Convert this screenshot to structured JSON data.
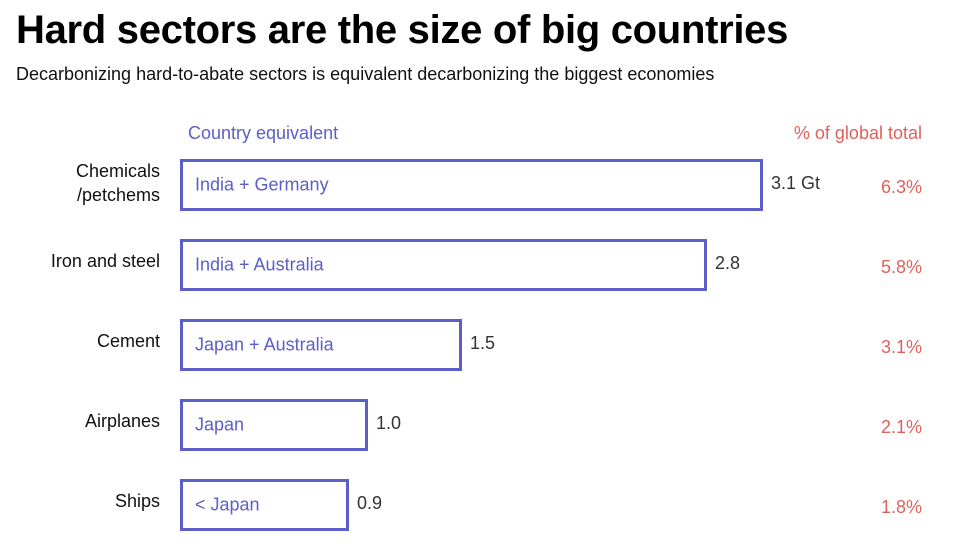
{
  "title": "Hard sectors are the size of big countries",
  "subtitle": "Decarbonizing hard-to-abate sectors is equivalent decarbonizing the biggest economies",
  "chart_data": {
    "type": "bar",
    "orientation": "horizontal",
    "title": "Hard sectors are the size of big countries",
    "subtitle": "Decarbonizing hard-to-abate sectors is equivalent decarbonizing the biggest economies",
    "country_header": "Country equivalent",
    "percent_header": "% of global total",
    "unit": "Gt",
    "xlim": [
      0,
      3.1
    ],
    "grid": false,
    "legend": "none",
    "categories": [
      [
        "Chemicals",
        "/petchems"
      ],
      [
        "Iron and steel"
      ],
      [
        "Cement"
      ],
      [
        "Airplanes"
      ],
      [
        "Ships"
      ]
    ],
    "values": [
      3.1,
      2.8,
      1.5,
      1.0,
      0.9
    ],
    "value_labels": [
      "3.1 Gt",
      "2.8",
      "1.5",
      "1.0",
      "0.9"
    ],
    "country_equivalents": [
      "India + Germany",
      "India + Australia",
      "Japan + Australia",
      "Japan",
      "< Japan"
    ],
    "percent_of_global": [
      "6.3%",
      "5.8%",
      "3.1%",
      "2.1%",
      "1.8%"
    ],
    "colors": {
      "bar_outline": "#5b5fc7",
      "country_text": "#5b5fc7",
      "percent_text": "#e0605a",
      "value_text": "#333333"
    }
  }
}
